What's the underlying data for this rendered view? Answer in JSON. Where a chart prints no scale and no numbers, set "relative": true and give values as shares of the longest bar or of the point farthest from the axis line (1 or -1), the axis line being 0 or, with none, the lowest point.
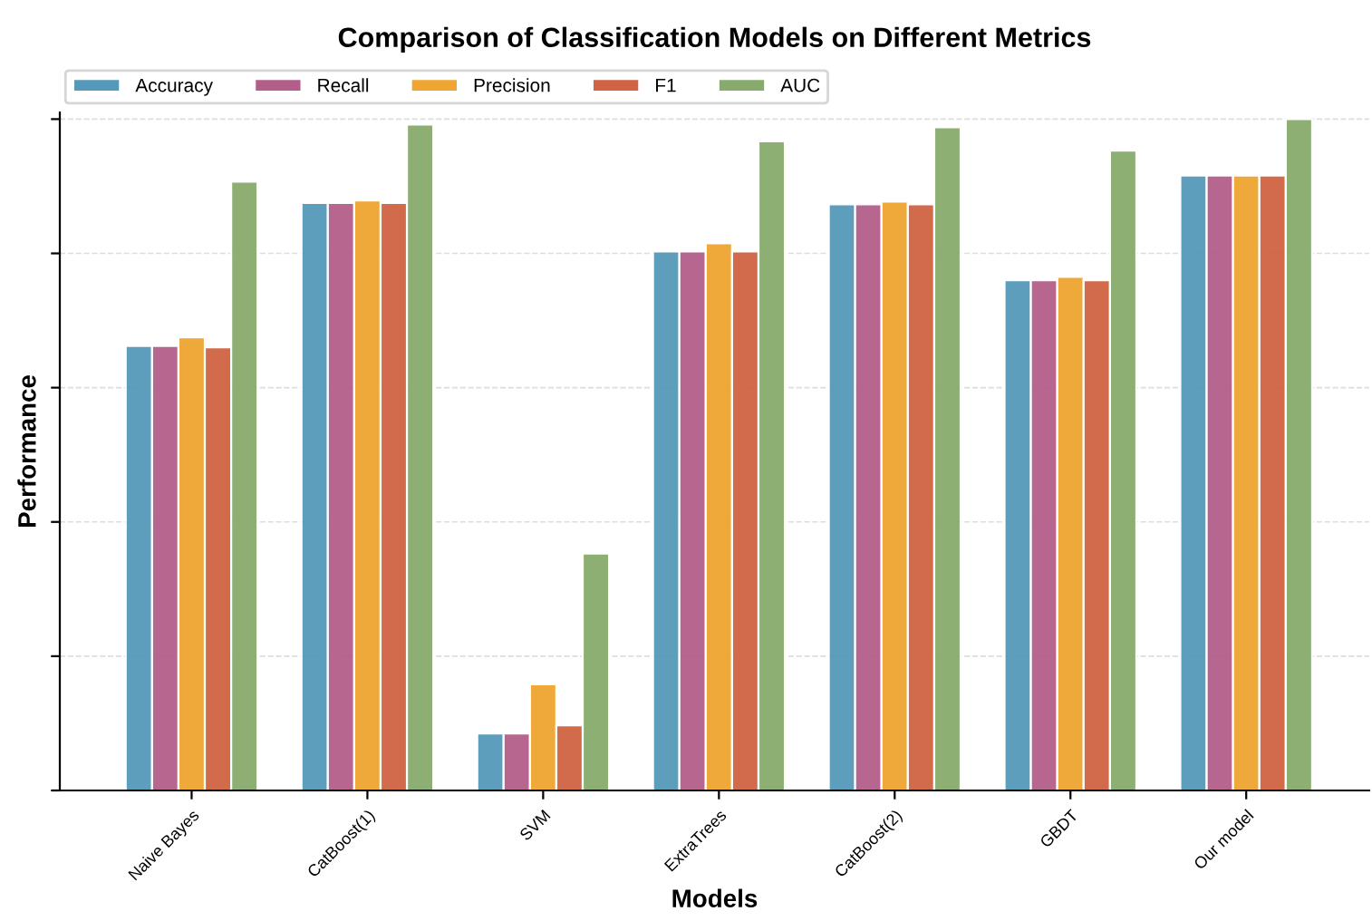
{
  "chart_data": {
    "type": "bar",
    "title": "Comparison of Classification Models on Different Metrics",
    "xlabel": "Models",
    "ylabel": "Performance",
    "categories": [
      "Naive Bayes",
      "CatBoost(1)",
      "SVM",
      "ExtraTrees",
      "CatBoost(2)",
      "GBDT",
      "Our model"
    ],
    "relative": true,
    "grid": "y",
    "legend": "top left",
    "tick_labels": "x",
    "series": [
      {
        "name": "Accuracy",
        "color": "#5499b9",
        "values": [
          0.662,
          0.875,
          0.085,
          0.803,
          0.873,
          0.76,
          0.916
        ]
      },
      {
        "name": "Recall",
        "color": "#b35e8a",
        "values": [
          0.662,
          0.875,
          0.085,
          0.803,
          0.873,
          0.76,
          0.916
        ]
      },
      {
        "name": "Precision",
        "color": "#efa531",
        "values": [
          0.675,
          0.879,
          0.158,
          0.815,
          0.877,
          0.765,
          0.916
        ]
      },
      {
        "name": "F1",
        "color": "#d06343",
        "values": [
          0.66,
          0.875,
          0.097,
          0.803,
          0.873,
          0.76,
          0.916
        ]
      },
      {
        "name": "AUC",
        "color": "#88ab6d",
        "values": [
          0.907,
          0.992,
          0.353,
          0.967,
          0.988,
          0.953,
          1
        ]
      }
    ]
  }
}
